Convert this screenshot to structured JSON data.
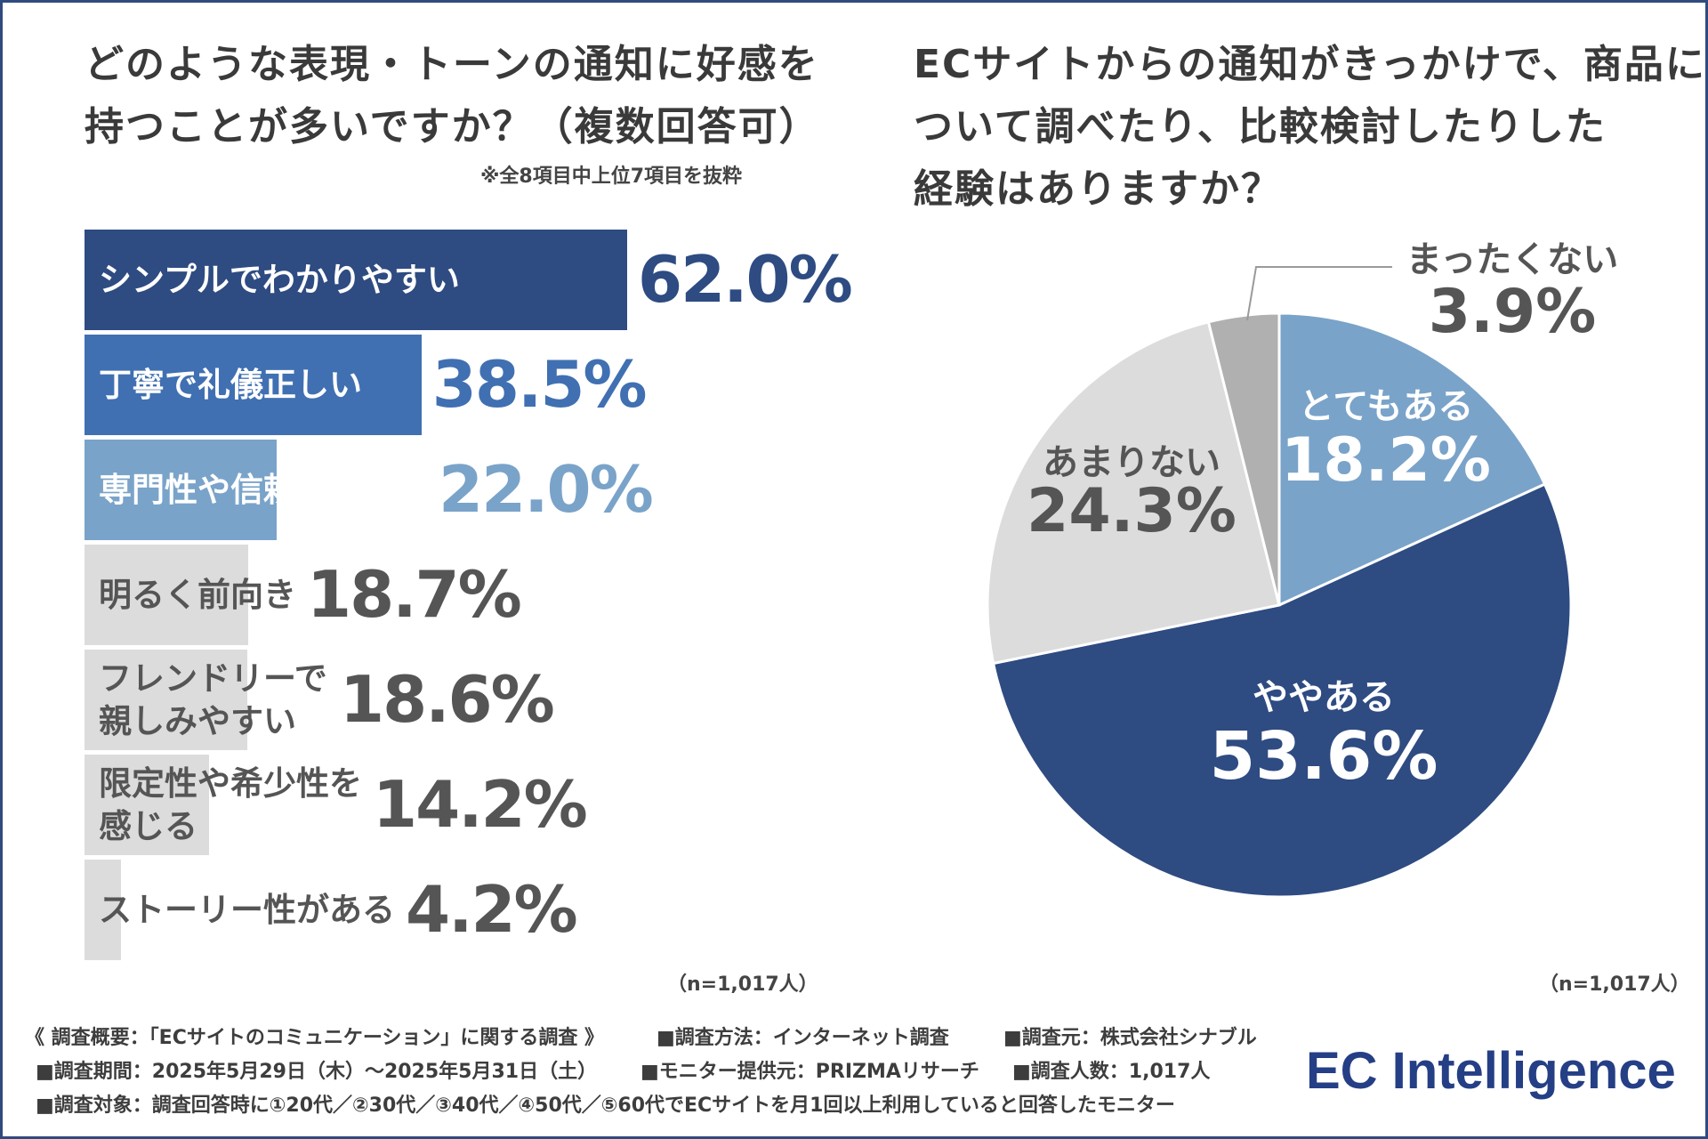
{
  "left": {
    "title_lines": [
      "どのような表現・トーンの通知に好感を",
      "持つことが多いですか？（複数回答可）"
    ],
    "note": "※全8項目中上位7項目を抜粋",
    "n_label": "（n=1,017人）"
  },
  "right": {
    "title_lines": [
      "ECサイトからの通知がきっかけで、商品に",
      "ついて調べたり、比較検討したりした",
      "経験はありますか？"
    ],
    "n_label": "（n=1,017人）"
  },
  "colors": {
    "navy": "#2e4b82",
    "mid_blue": "#4070b2",
    "light_blue": "#7aa3c9",
    "light_gray": "#dcdcdc",
    "mid_gray": "#b0b0b0",
    "text_gray": "#555555",
    "white": "#ffffff"
  },
  "chart_data": [
    {
      "type": "bar",
      "orientation": "horizontal",
      "categories": [
        "シンプルでわかりやすい",
        "丁寧で礼儀正しい",
        "専門性や信頼感がある",
        "明るく前向き",
        "フレンドリーで\n親しみやすい",
        "限定性や希少性を\n感じる",
        "ストーリー性がある"
      ],
      "values": [
        62.0,
        38.5,
        22.0,
        18.7,
        18.6,
        14.2,
        4.2
      ],
      "value_labels": [
        "62.0%",
        "38.5%",
        "22.0%",
        "18.7%",
        "18.6%",
        "14.2%",
        "4.2%"
      ],
      "bar_colors": [
        "#2e4b82",
        "#4070b2",
        "#7aa3c9",
        "#dcdcdc",
        "#dcdcdc",
        "#dcdcdc",
        "#dcdcdc"
      ],
      "value_colors": [
        "#2e4b82",
        "#4070b2",
        "#7aa3c9",
        "#555555",
        "#555555",
        "#555555",
        "#555555"
      ],
      "label_colors": [
        "#ffffff",
        "#ffffff",
        "#ffffff",
        "#555555",
        "#555555",
        "#555555",
        "#555555"
      ]
    },
    {
      "type": "pie",
      "categories": [
        "とてもある",
        "ややある",
        "あまりない",
        "まったくない"
      ],
      "values": [
        18.2,
        53.6,
        24.3,
        3.9
      ],
      "value_labels": [
        "18.2%",
        "53.6%",
        "24.3%",
        "3.9%"
      ],
      "colors": [
        "#7aa3c9",
        "#2e4b82",
        "#dcdcdc",
        "#b0b0b0"
      ],
      "label_colors": [
        "#ffffff",
        "#ffffff",
        "#555555",
        "#555555"
      ]
    }
  ],
  "footer": {
    "line1_a": "《 調査概要：「ECサイトのコミュニケーション」に関する調査 》",
    "line1_b": "■調査方法：インターネット調査",
    "line1_c": "■調査元：株式会社シナブル",
    "line2_a": "■調査期間：2025年5月29日（木）～2025年5月31日（土）",
    "line2_b": "■モニター提供元：PRIZMAリサーチ",
    "line2_c": "■調査人数：1,017人",
    "line3": "■調査対象：調査回答時に①20代／②30代／③40代／④50代／⑤60代でECサイトを月1回以上利用していると回答したモニター"
  },
  "logo": "EC Intelligence"
}
